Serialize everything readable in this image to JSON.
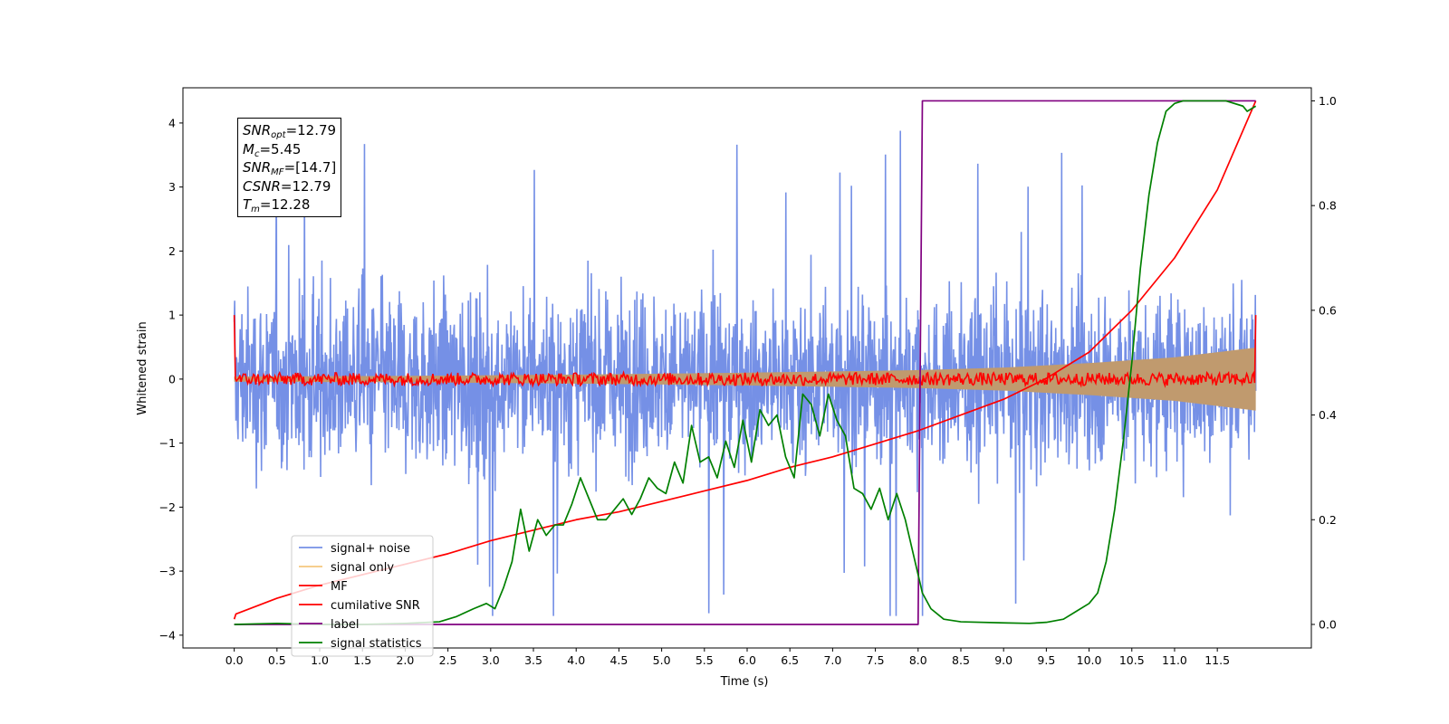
{
  "chart_data": {
    "type": "line",
    "xlabel": "Time (s)",
    "ylabel": "Whitened strain",
    "xlim": [
      -0.6,
      12.6
    ],
    "ylim": [
      -4.2,
      4.55
    ],
    "y2lim": [
      -0.045,
      1.025
    ],
    "x_ticks": [
      "0.0",
      "0.5",
      "1.0",
      "1.5",
      "2.0",
      "2.5",
      "3.0",
      "3.5",
      "4.0",
      "4.5",
      "5.0",
      "5.5",
      "6.0",
      "6.5",
      "7.0",
      "7.5",
      "8.0",
      "8.5",
      "9.0",
      "9.5",
      "10.0",
      "10.5",
      "11.0",
      "11.5"
    ],
    "y_ticks": [
      "4",
      "3",
      "2",
      "1",
      "0",
      "−1",
      "−2",
      "−3",
      "−4"
    ],
    "y2_ticks": [
      "1.0",
      "0.8",
      "0.6",
      "0.4",
      "0.2",
      "0.0"
    ],
    "legend_location": "lower-left",
    "stats": {
      "snr_opt": {
        "sym": "SNR",
        "sub": "opt",
        "value": "=12.79"
      },
      "mc": {
        "sym": "M",
        "sub": "c",
        "value": "=5.45"
      },
      "snr_mf": {
        "sym": "SNR",
        "sub": "MF",
        "value": "=[14.7]"
      },
      "csnr": {
        "sym": "CSNR",
        "sub": "",
        "value": "=12.79"
      },
      "tm": {
        "sym": "T",
        "sub": "m",
        "value": "=12.28"
      }
    },
    "series": [
      {
        "name": "signal+ noise",
        "color": "#7590e6",
        "axis": "left",
        "description_values": "whitened noisy strain, roughly within ±2.3 with spikes to 4.2 and -3.7 over 0 to 12 s"
      },
      {
        "name": "signal only",
        "color": "#f5c77e",
        "axis": "left",
        "envelope": {
          "t": [
            0,
            2,
            4,
            6,
            8,
            9,
            10,
            11,
            11.5,
            12
          ],
          "amp": [
            0.04,
            0.05,
            0.07,
            0.1,
            0.14,
            0.18,
            0.25,
            0.34,
            0.42,
            0.5
          ]
        }
      },
      {
        "name": "MF",
        "color": "#ff0000",
        "axis": "left",
        "endpoints": {
          "start": 1.0,
          "end": 1.0
        },
        "baseline": 0.0,
        "noise_amplitude": 0.1
      },
      {
        "name": "cumilative SNR",
        "color": "#ff0000",
        "axis": "right",
        "x": [
          0.0,
          0.02,
          0.5,
          1.0,
          1.5,
          2.0,
          2.5,
          3.0,
          3.5,
          4.0,
          4.5,
          5.0,
          5.5,
          6.0,
          6.5,
          7.0,
          7.5,
          8.0,
          8.5,
          9.0,
          9.5,
          10.0,
          10.5,
          11.0,
          11.5,
          11.95
        ],
        "values": [
          0.01,
          0.02,
          0.05,
          0.075,
          0.095,
          0.115,
          0.135,
          0.16,
          0.18,
          0.2,
          0.215,
          0.235,
          0.255,
          0.275,
          0.3,
          0.32,
          0.345,
          0.37,
          0.4,
          0.43,
          0.47,
          0.52,
          0.6,
          0.7,
          0.83,
          1.0
        ]
      },
      {
        "name": "label",
        "color": "#800080",
        "axis": "right",
        "x": [
          0.0,
          8.0,
          8.05,
          11.95
        ],
        "values": [
          0.0,
          0.0,
          1.0,
          1.0
        ]
      },
      {
        "name": "signal statistics",
        "color": "#008000",
        "axis": "right",
        "x": [
          0.0,
          0.5,
          1.0,
          1.5,
          2.0,
          2.4,
          2.6,
          2.8,
          2.95,
          3.05,
          3.15,
          3.25,
          3.35,
          3.45,
          3.55,
          3.65,
          3.75,
          3.85,
          3.95,
          4.05,
          4.15,
          4.25,
          4.35,
          4.45,
          4.55,
          4.65,
          4.75,
          4.85,
          4.95,
          5.05,
          5.15,
          5.25,
          5.35,
          5.45,
          5.55,
          5.65,
          5.75,
          5.85,
          5.95,
          6.05,
          6.15,
          6.25,
          6.35,
          6.45,
          6.55,
          6.65,
          6.75,
          6.85,
          6.95,
          7.05,
          7.15,
          7.25,
          7.35,
          7.45,
          7.55,
          7.65,
          7.75,
          7.85,
          7.95,
          8.05,
          8.15,
          8.3,
          8.5,
          9.0,
          9.3,
          9.5,
          9.7,
          9.85,
          10.0,
          10.1,
          10.2,
          10.3,
          10.4,
          10.5,
          10.6,
          10.7,
          10.8,
          10.9,
          11.0,
          11.1,
          11.3,
          11.6,
          11.8,
          11.85,
          11.9,
          11.95
        ],
        "values": [
          0.0,
          0.002,
          0.0,
          0.0,
          0.002,
          0.005,
          0.015,
          0.03,
          0.04,
          0.03,
          0.07,
          0.12,
          0.22,
          0.14,
          0.2,
          0.17,
          0.19,
          0.19,
          0.23,
          0.28,
          0.24,
          0.2,
          0.2,
          0.22,
          0.24,
          0.21,
          0.24,
          0.28,
          0.26,
          0.25,
          0.31,
          0.27,
          0.38,
          0.31,
          0.32,
          0.28,
          0.35,
          0.3,
          0.39,
          0.31,
          0.41,
          0.38,
          0.4,
          0.32,
          0.28,
          0.44,
          0.42,
          0.36,
          0.44,
          0.39,
          0.36,
          0.26,
          0.25,
          0.22,
          0.26,
          0.2,
          0.25,
          0.2,
          0.13,
          0.06,
          0.03,
          0.01,
          0.005,
          0.003,
          0.002,
          0.004,
          0.01,
          0.025,
          0.04,
          0.06,
          0.12,
          0.22,
          0.35,
          0.5,
          0.68,
          0.82,
          0.92,
          0.98,
          0.995,
          1.0,
          1.0,
          1.0,
          0.99,
          0.98,
          0.985,
          0.99
        ]
      }
    ]
  }
}
